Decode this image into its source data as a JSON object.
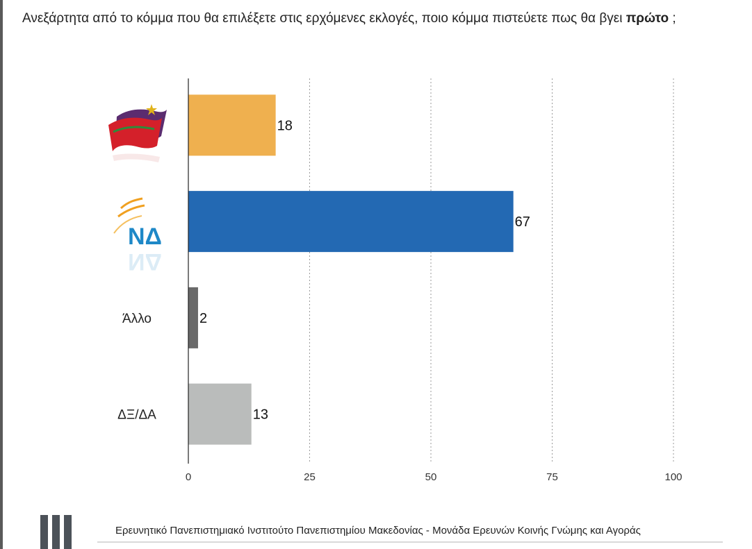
{
  "title": {
    "prefix": "Ανεξάρτητα από το κόμμα που θα επιλέξετε στις ερχόμενες εκλογές, ποιο κόμμα πιστεύετε πως θα βγει",
    "bold": "πρώτο",
    "suffix": ";"
  },
  "chart_data": {
    "type": "bar",
    "orientation": "horizontal",
    "categories": [
      "ΣΥΡΙΖΑ logo",
      "ΝΔ",
      "Άλλο",
      "ΔΞ/ΔΑ"
    ],
    "category_display": [
      "",
      "",
      "Άλλο",
      "ΔΞ/ΔΑ"
    ],
    "values": [
      18,
      67,
      2,
      13
    ],
    "value_labels": [
      "18",
      "67",
      "2",
      "13"
    ],
    "colors": [
      "#EFB04F",
      "#2369B3",
      "#6A6A6A",
      "#BABCBB"
    ],
    "xlim": [
      0,
      100
    ],
    "xticks": [
      0,
      25,
      50,
      75,
      100
    ],
    "xtick_labels": [
      "0",
      "25",
      "50",
      "75",
      "100"
    ],
    "grid": "vertical dashed",
    "legend": "none",
    "title": "",
    "xlabel": "",
    "ylabel": ""
  },
  "logos": {
    "syriza": "syriza-logo",
    "nd": {
      "icon": "nd-logo",
      "text": "ΝΔ"
    }
  },
  "footer": {
    "text": "Ερευνητικό Πανεπιστημιακό Ινστιτούτο Πανεπιστημίου Μακεδονίας - Μονάδα Ερευνών Κοινής Γνώμης και Αγοράς",
    "icon": "institute-bars-logo"
  }
}
